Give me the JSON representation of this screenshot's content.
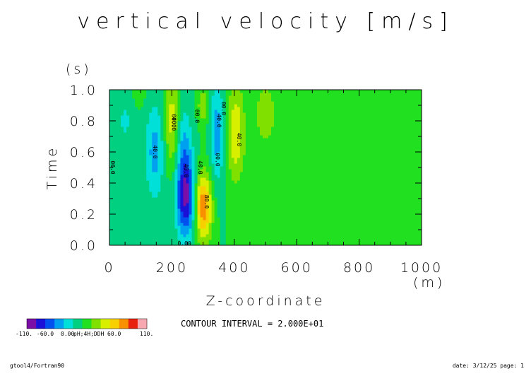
{
  "chart_data": {
    "type": "heatmap",
    "title": "vertical velocity [m/s]",
    "xlabel": "Z-coordinate",
    "xunit": "(m)",
    "ylabel": "Time",
    "yunit": "(s)",
    "xlim": [
      0,
      1000
    ],
    "ylim": [
      0.0,
      1.0
    ],
    "x_ticks": [
      "0",
      "200",
      "400",
      "600",
      "800",
      "1000"
    ],
    "y_ticks": [
      "0.0",
      "0.2",
      "0.4",
      "0.6",
      "0.8",
      "1.0"
    ],
    "contour_interval_text": "CONTOUR INTERVAL = 2.000E+01",
    "contour_labels": [
      {
        "text": "00.0",
        "x": 5,
        "y": 0.5
      },
      {
        "text": "40.0",
        "x": 140,
        "y": 0.6
      },
      {
        "text": "00.0",
        "x": 200,
        "y": 0.8
      },
      {
        "text": "40.0",
        "x": 200,
        "y": 0.78
      },
      {
        "text": "40.0",
        "x": 240,
        "y": 0.48
      },
      {
        "text": "00.0",
        "x": 275,
        "y": 0.83
      },
      {
        "text": "40.0",
        "x": 285,
        "y": 0.5
      },
      {
        "text": "80.0",
        "x": 305,
        "y": 0.28
      },
      {
        "text": "00.0",
        "x": 340,
        "y": 0.55
      },
      {
        "text": "40.0",
        "x": 345,
        "y": 0.8
      },
      {
        "text": "00.0",
        "x": 360,
        "y": 0.88
      },
      {
        "text": "40.0",
        "x": 410,
        "y": 0.68
      },
      {
        "text": "0.00",
        "x": 240,
        "y": 0.0
      }
    ],
    "features": [
      {
        "x": 50,
        "t": 0.8,
        "amp": -25,
        "sx": 15,
        "st": 0.12
      },
      {
        "x": 100,
        "t": 0.97,
        "amp": 10,
        "sx": 15,
        "st": 0.05
      },
      {
        "x": 145,
        "t": 0.6,
        "amp": -48,
        "sx": 22,
        "st": 0.22
      },
      {
        "x": 200,
        "t": 0.8,
        "amp": 50,
        "sx": 16,
        "st": 0.22
      },
      {
        "x": 245,
        "t": 0.3,
        "amp": -100,
        "sx": 22,
        "st": 0.18
      },
      {
        "x": 240,
        "t": 0.62,
        "amp": -40,
        "sx": 18,
        "st": 0.2
      },
      {
        "x": 300,
        "t": 0.25,
        "amp": 100,
        "sx": 20,
        "st": 0.15
      },
      {
        "x": 300,
        "t": 0.9,
        "amp": 40,
        "sx": 12,
        "st": 0.08
      },
      {
        "x": 345,
        "t": 0.72,
        "amp": -50,
        "sx": 16,
        "st": 0.24
      },
      {
        "x": 405,
        "t": 0.72,
        "amp": 58,
        "sx": 20,
        "st": 0.22
      },
      {
        "x": 500,
        "t": 0.85,
        "amp": 35,
        "sx": 25,
        "st": 0.15
      }
    ],
    "colorbar": {
      "levels": [
        -110,
        -100,
        -80,
        -60,
        -40,
        -20,
        0,
        20,
        40,
        60,
        80,
        100,
        110
      ],
      "colors": [
        "#7b0ea6",
        "#1a10d8",
        "#0050f0",
        "#00a0f0",
        "#00e0d8",
        "#00d080",
        "#20e020",
        "#80e000",
        "#d8f000",
        "#f8d000",
        "#f89000",
        "#e82010",
        "#f8a8b0"
      ],
      "labels": [
        "-110.",
        "-60.0",
        "0.00",
        "60.0",
        "110."
      ],
      "overlap_text": "pH;4H;DDH"
    }
  },
  "footer": {
    "left": "gtool4/Fortran90",
    "right": "date: 3/12/25 page: 1"
  }
}
